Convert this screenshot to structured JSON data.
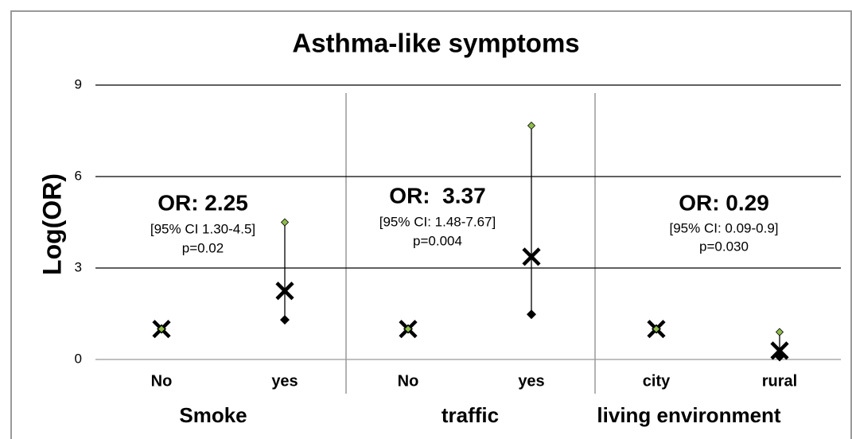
{
  "chart_data": {
    "type": "errorbar",
    "title": "Asthma-like symptoms",
    "y_label": "Log(OR)",
    "categories": [
      "No",
      "yes",
      "No",
      "yes",
      "city",
      "rural"
    ],
    "groups": [
      "Smoke",
      "traffic",
      "living environment"
    ],
    "values": [
      1,
      2.25,
      1,
      3.37,
      1,
      0.29
    ],
    "ci_low": [
      1,
      1.3,
      1,
      1.48,
      1,
      0.09
    ],
    "ci_high": [
      1,
      4.5,
      1,
      7.67,
      1,
      0.9
    ],
    "ylim": [
      0,
      9
    ],
    "yticks": [
      0,
      3,
      6,
      9
    ],
    "grid": true,
    "color": "#000000",
    "high_color": "#8fbc4a",
    "annotations": [
      [
        "OR: 2.25",
        "[95% CI 1.30-4.5]",
        "p=0.02"
      ],
      [
        "OR:  3.37",
        "[95% CI: 1.48-7.67]",
        "p=0.004"
      ],
      [
        "OR: 0.29",
        "[95% CI: 0.09-0.9]",
        "p=0.030"
      ]
    ]
  }
}
